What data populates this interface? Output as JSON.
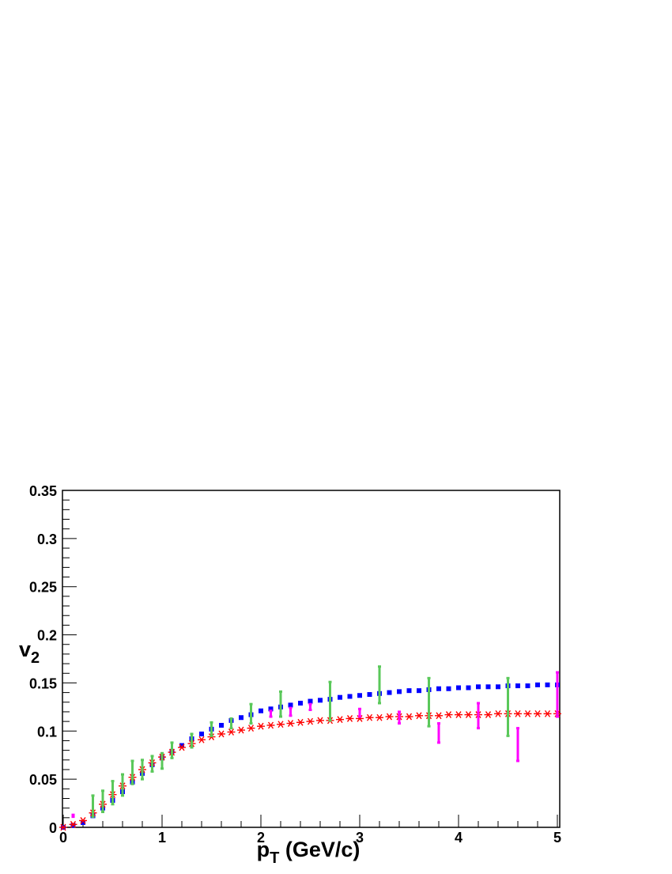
{
  "chart_data": {
    "type": "scatter",
    "x_label": [
      "p",
      "T",
      " (GeV/c)"
    ],
    "y_label": [
      "v",
      "2"
    ],
    "xlim": [
      0,
      5
    ],
    "ylim": [
      0,
      0.35
    ],
    "xticks": [
      0,
      1,
      2,
      3,
      4,
      5
    ],
    "yticks": [
      0,
      0.05,
      0.1,
      0.15,
      0.2,
      0.25,
      0.3,
      0.35
    ],
    "series": [
      {
        "color": "#0000ff",
        "marker": "square",
        "x": [
          0,
          0.1,
          0.2,
          0.3,
          0.4,
          0.5,
          0.6,
          0.7,
          0.8,
          0.9,
          1.0,
          1.1,
          1.2,
          1.3,
          1.4,
          1.5,
          1.6,
          1.7,
          1.8,
          1.9,
          2.0,
          2.1,
          2.2,
          2.3,
          2.4,
          2.5,
          2.6,
          2.7,
          2.8,
          2.9,
          3.0,
          3.1,
          3.2,
          3.3,
          3.4,
          3.5,
          3.6,
          3.7,
          3.8,
          3.9,
          4.0,
          4.1,
          4.2,
          4.3,
          4.4,
          4.5,
          4.6,
          4.7,
          4.8,
          4.9,
          5.0
        ],
        "values": [
          0,
          0.002,
          0.005,
          0.012,
          0.02,
          0.028,
          0.037,
          0.047,
          0.056,
          0.065,
          0.072,
          0.079,
          0.085,
          0.092,
          0.097,
          0.102,
          0.106,
          0.111,
          0.114,
          0.117,
          0.121,
          0.123,
          0.125,
          0.127,
          0.129,
          0.131,
          0.132,
          0.133,
          0.135,
          0.136,
          0.137,
          0.138,
          0.139,
          0.14,
          0.141,
          0.142,
          0.142,
          0.143,
          0.144,
          0.144,
          0.145,
          0.145,
          0.146,
          0.146,
          0.146,
          0.147,
          0.147,
          0.147,
          0.148,
          0.148,
          0.148
        ]
      },
      {
        "color": "#ff0000",
        "marker": "star",
        "x": [
          0,
          0.1,
          0.2,
          0.3,
          0.4,
          0.5,
          0.6,
          0.7,
          0.8,
          0.9,
          1.0,
          1.1,
          1.2,
          1.3,
          1.4,
          1.5,
          1.6,
          1.7,
          1.8,
          1.9,
          2.0,
          2.1,
          2.2,
          2.3,
          2.4,
          2.5,
          2.6,
          2.7,
          2.8,
          2.9,
          3.0,
          3.1,
          3.2,
          3.3,
          3.4,
          3.5,
          3.6,
          3.7,
          3.8,
          3.9,
          4.0,
          4.1,
          4.2,
          4.3,
          4.4,
          4.5,
          4.6,
          4.7,
          4.8,
          4.9,
          5.0
        ],
        "values": [
          0,
          0.003,
          0.007,
          0.015,
          0.024,
          0.034,
          0.043,
          0.052,
          0.06,
          0.067,
          0.073,
          0.078,
          0.083,
          0.087,
          0.091,
          0.094,
          0.097,
          0.099,
          0.101,
          0.103,
          0.105,
          0.106,
          0.107,
          0.108,
          0.109,
          0.11,
          0.111,
          0.111,
          0.112,
          0.113,
          0.113,
          0.114,
          0.114,
          0.115,
          0.115,
          0.115,
          0.116,
          0.116,
          0.116,
          0.117,
          0.117,
          0.117,
          0.117,
          0.117,
          0.118,
          0.118,
          0.118,
          0.118,
          0.118,
          0.118,
          0.118
        ]
      },
      {
        "color": "#5ac85a",
        "marker": "errorbar",
        "x": [
          0.3,
          0.4,
          0.5,
          0.6,
          0.7,
          0.8,
          0.9,
          1.0,
          1.1,
          1.3,
          1.5,
          1.7,
          1.9,
          2.2,
          2.7,
          3.2,
          3.7,
          4.5
        ],
        "values": [
          0.022,
          0.027,
          0.036,
          0.044,
          0.057,
          0.06,
          0.066,
          0.069,
          0.08,
          0.09,
          0.102,
          0.108,
          0.118,
          0.128,
          0.131,
          0.148,
          0.13,
          0.125
        ],
        "errors": [
          0.011,
          0.011,
          0.012,
          0.011,
          0.012,
          0.01,
          0.008,
          0.008,
          0.008,
          0.007,
          0.007,
          0.005,
          0.01,
          0.013,
          0.02,
          0.019,
          0.025,
          0.03
        ]
      },
      {
        "color": "#ff00ff",
        "marker": "errorbar",
        "x": [
          0.1,
          2.1,
          2.3,
          2.5,
          3.0,
          3.4,
          3.8,
          4.2,
          4.6,
          5.0
        ],
        "values": [
          0.012,
          0.118,
          0.12,
          0.125,
          0.119,
          0.114,
          0.098,
          0.116,
          0.086,
          0.138
        ],
        "errors": [
          0.001,
          0.003,
          0.004,
          0.003,
          0.004,
          0.006,
          0.01,
          0.013,
          0.017,
          0.023
        ]
      }
    ]
  }
}
